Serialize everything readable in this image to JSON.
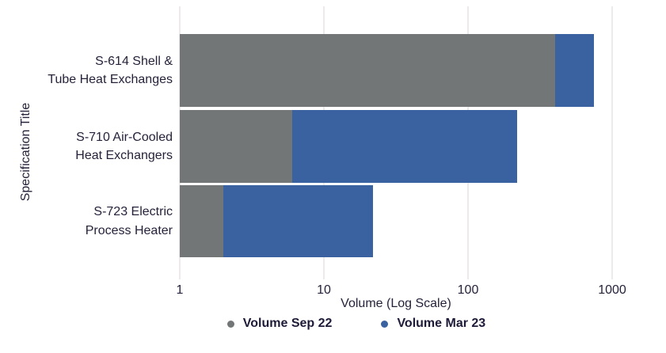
{
  "chart_data": {
    "type": "bar",
    "orientation": "horizontal",
    "x_scale": "log",
    "title": "",
    "xlabel": "Volume (Log Scale)",
    "ylabel": "Specification Title",
    "x_ticks": [
      1,
      10,
      100,
      1000
    ],
    "xlim": [
      1,
      1300
    ],
    "grid": true,
    "legend_position": "bottom",
    "categories": [
      "S-614 Shell & Tube Heat Exchanges",
      "S-710 Air-Cooled Heat Exchangers",
      "S-723 Electric Process Heater"
    ],
    "series": [
      {
        "name": "Volume Sep 22",
        "color": "#727677",
        "values": [
          400,
          6,
          2
        ]
      },
      {
        "name": "Volume Mar 23",
        "color": "#3A61A0",
        "values": [
          750,
          220,
          22
        ]
      }
    ]
  },
  "category_display": [
    {
      "line1": "S-614 Shell &",
      "line2": "Tube Heat Exchanges"
    },
    {
      "line1": "S-710 Air-Cooled",
      "line2": "Heat Exchangers"
    },
    {
      "line1": "S-723 Electric",
      "line2": "Process Heater"
    }
  ],
  "colors": {
    "sep22_bar": "#727677",
    "mar23_bar": "#3A61A0",
    "gridline": "#ECEAEA",
    "text": "#26223A"
  }
}
